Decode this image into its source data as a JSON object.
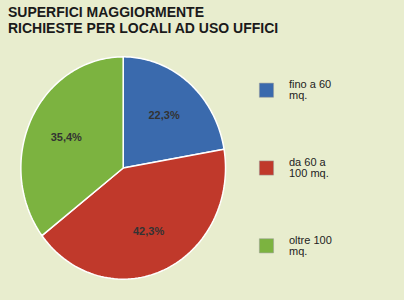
{
  "chart_data": {
    "type": "pie",
    "title": "SUPERFICI MAGGIORMENTE\nRICHIESTE PER LOCALI AD USO UFFICI",
    "categories": [
      "fino a 60\nmq.",
      "da 60 a\n100 mq.",
      "oltre 100\nmq."
    ],
    "values": [
      22.3,
      42.3,
      35.4
    ],
    "value_labels": [
      "22,3%",
      "42,3%",
      "35,4%"
    ],
    "colors": [
      "#3a6aad",
      "#c0392b",
      "#7cb340"
    ],
    "data_labels": true,
    "legend": "right"
  }
}
